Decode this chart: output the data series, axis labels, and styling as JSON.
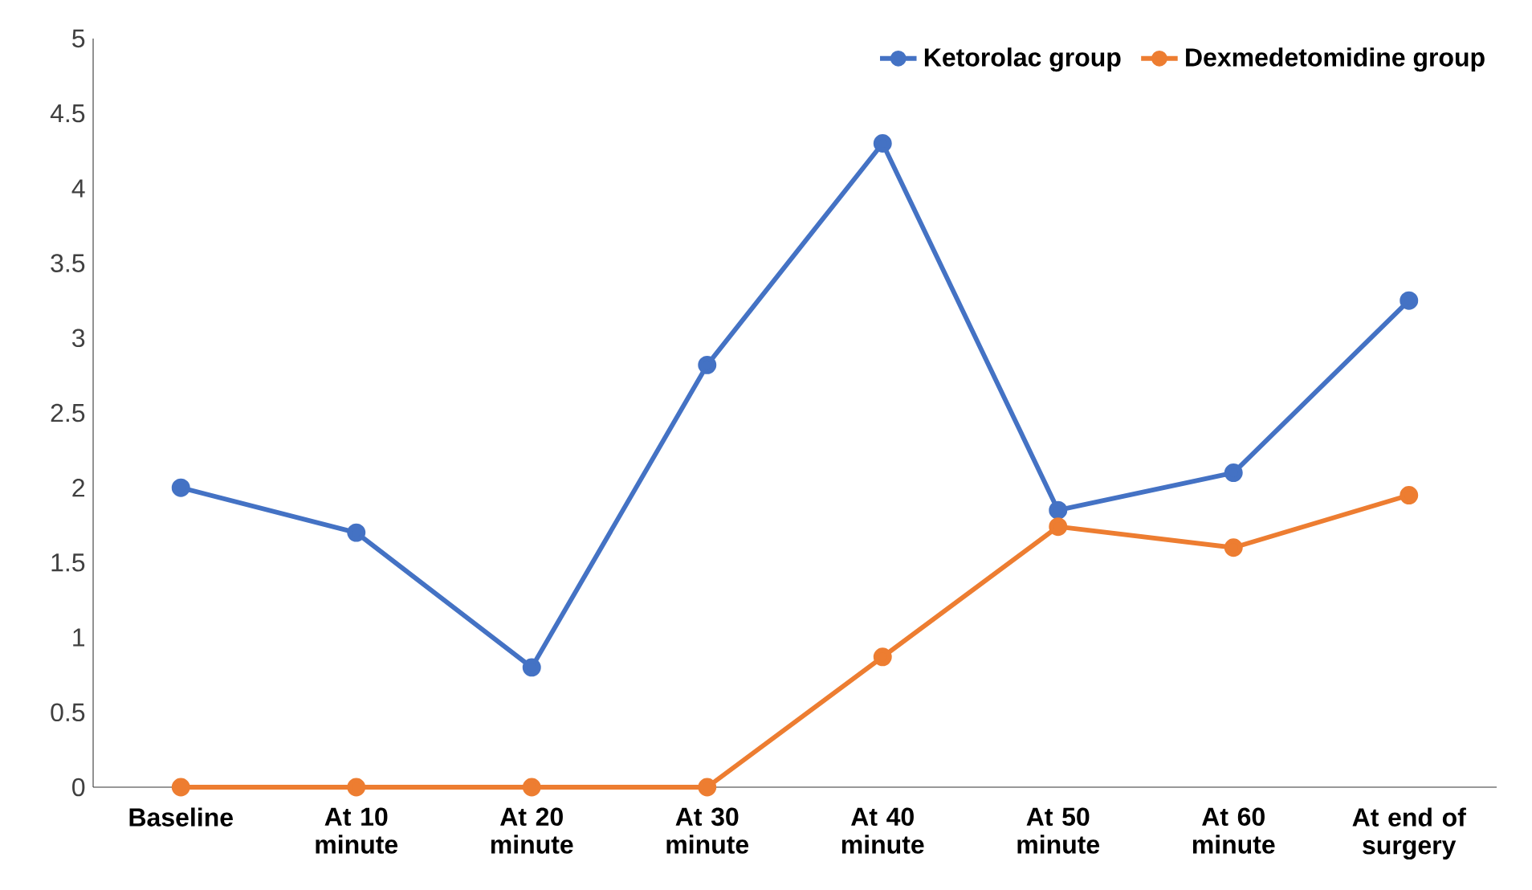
{
  "chart_data": {
    "type": "line",
    "categories": [
      "Baseline",
      "At 10 minute",
      "At 20 minute",
      "At 30 minute",
      "At 40 minute",
      "At 50 minute",
      "At 60 minute",
      "At end of surgery"
    ],
    "series": [
      {
        "name": "Ketorolac group",
        "color": "#4472c4",
        "values": [
          2.0,
          1.7,
          0.8,
          2.82,
          4.3,
          1.85,
          2.1,
          3.25
        ]
      },
      {
        "name": "Dexmedetomidine group",
        "color": "#ed7d31",
        "values": [
          0,
          0,
          0,
          0,
          0.87,
          1.74,
          1.6,
          1.95
        ]
      }
    ],
    "ylim": [
      0,
      5
    ],
    "yticks": [
      0,
      0.5,
      1,
      1.5,
      2,
      2.5,
      3,
      3.5,
      4,
      4.5,
      5
    ],
    "legend": "top right",
    "marker": "circle",
    "line_style": "solid"
  }
}
